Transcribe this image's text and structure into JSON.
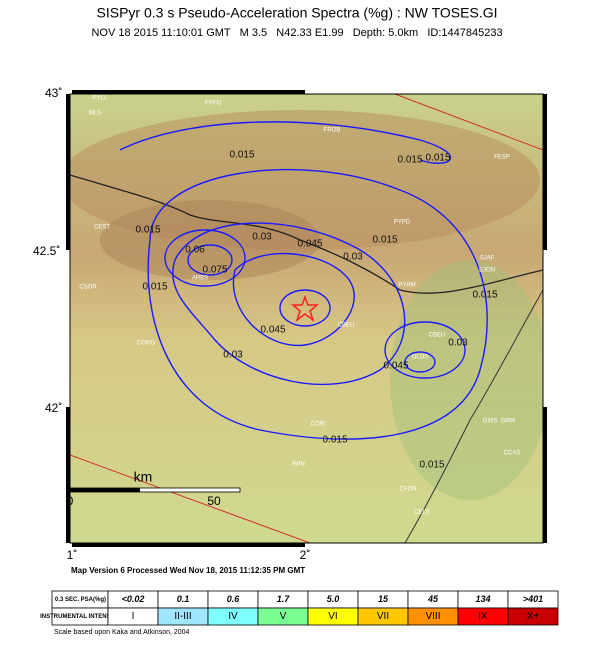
{
  "title": "SISPyr 0.3 s Pseudo-Acceleration Spectra (%g) : NW TOSES.GI",
  "subtitle": "NOV 18 2015 11:10:01 GMT   M 3.5   N42.33 E1.99   Depth: 5.0km   ID:1447845233",
  "lat_labels": [
    "43˚",
    "42.5˚",
    "42˚"
  ],
  "lon_labels": [
    "1˚",
    "2˚"
  ],
  "scale": {
    "unit": "km",
    "ticks": [
      "0",
      "50"
    ]
  },
  "stations": [
    "PYLL",
    "MLS",
    "PYFO",
    "FROB",
    "FESP",
    "CEST",
    "PYPD",
    "ARBS",
    "SJAF",
    "EJON",
    "CSOR",
    "PYRM",
    "CBEU",
    "CBEU",
    "CORG",
    "OLOS",
    "CORI",
    "GIRS",
    "GIRR",
    "CCAS",
    "AVIN",
    "CFON",
    "CELS"
  ],
  "contour_labels": [
    "0.015",
    "0.015",
    "0.015",
    "0.015",
    "0.015",
    "0.015",
    "0.015",
    "0.015",
    "0.015",
    "0.03",
    "0.03",
    "0.03",
    "0.03",
    "0.045",
    "0.045",
    "0.045",
    "0.06",
    "0.075"
  ],
  "footer": "Map Version 6 Processed Wed Nov 18, 2015 11:12:35 PM GMT",
  "legend": {
    "psa_header": "0.3 SEC. PSA(%g)",
    "psa": [
      "<0.02",
      "0.1",
      "0.6",
      "1.7",
      "5.0",
      "15",
      "45",
      "134",
      ">401"
    ],
    "intensity_header": "INSTRUMENTAL INTENSITY",
    "intensity": [
      "I",
      "II-III",
      "IV",
      "V",
      "VI",
      "VII",
      "VIII",
      "IX",
      "X+"
    ]
  },
  "credit": "Scale based upon Kaka and Atkinson, 2004"
}
